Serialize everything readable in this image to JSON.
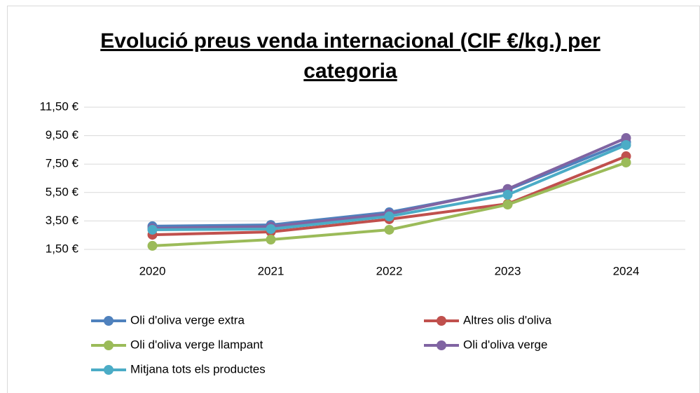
{
  "chart_data": {
    "type": "line",
    "title": [
      "Evolució preus venda internacional (CIF €/kg.) per",
      "categoria"
    ],
    "categories": [
      "2020",
      "2021",
      "2022",
      "2023",
      "2024"
    ],
    "series": [
      {
        "name": "Oli d'oliva verge extra",
        "color": "#4f81bd",
        "values": [
          3.13,
          3.22,
          4.11,
          5.69,
          9.04
        ]
      },
      {
        "name": "Altres olis d'oliva",
        "color": "#c0504d",
        "values": [
          2.53,
          2.73,
          3.62,
          4.7,
          8.05
        ]
      },
      {
        "name": "Oli d'oliva verge llampant",
        "color": "#9bbb59",
        "values": [
          1.75,
          2.19,
          2.88,
          4.65,
          7.61
        ]
      },
      {
        "name": "Oli d'oliva verge",
        "color": "#8064a2",
        "values": [
          2.98,
          3.1,
          4.0,
          5.75,
          9.33
        ]
      },
      {
        "name": "Mitjana tots els productes",
        "color": "#4bacc6",
        "values": [
          2.88,
          2.93,
          3.82,
          5.34,
          8.84
        ]
      }
    ],
    "ylim": [
      1.5,
      11.5
    ],
    "yticks": [
      {
        "value": 1.5,
        "label": "1,50 €"
      },
      {
        "value": 3.5,
        "label": "3,50 €"
      },
      {
        "value": 5.5,
        "label": "5,50 €"
      },
      {
        "value": 7.5,
        "label": "7,50 €"
      },
      {
        "value": 9.5,
        "label": "9,50 €"
      },
      {
        "value": 11.5,
        "label": "11,50 €"
      }
    ],
    "grid": true
  }
}
